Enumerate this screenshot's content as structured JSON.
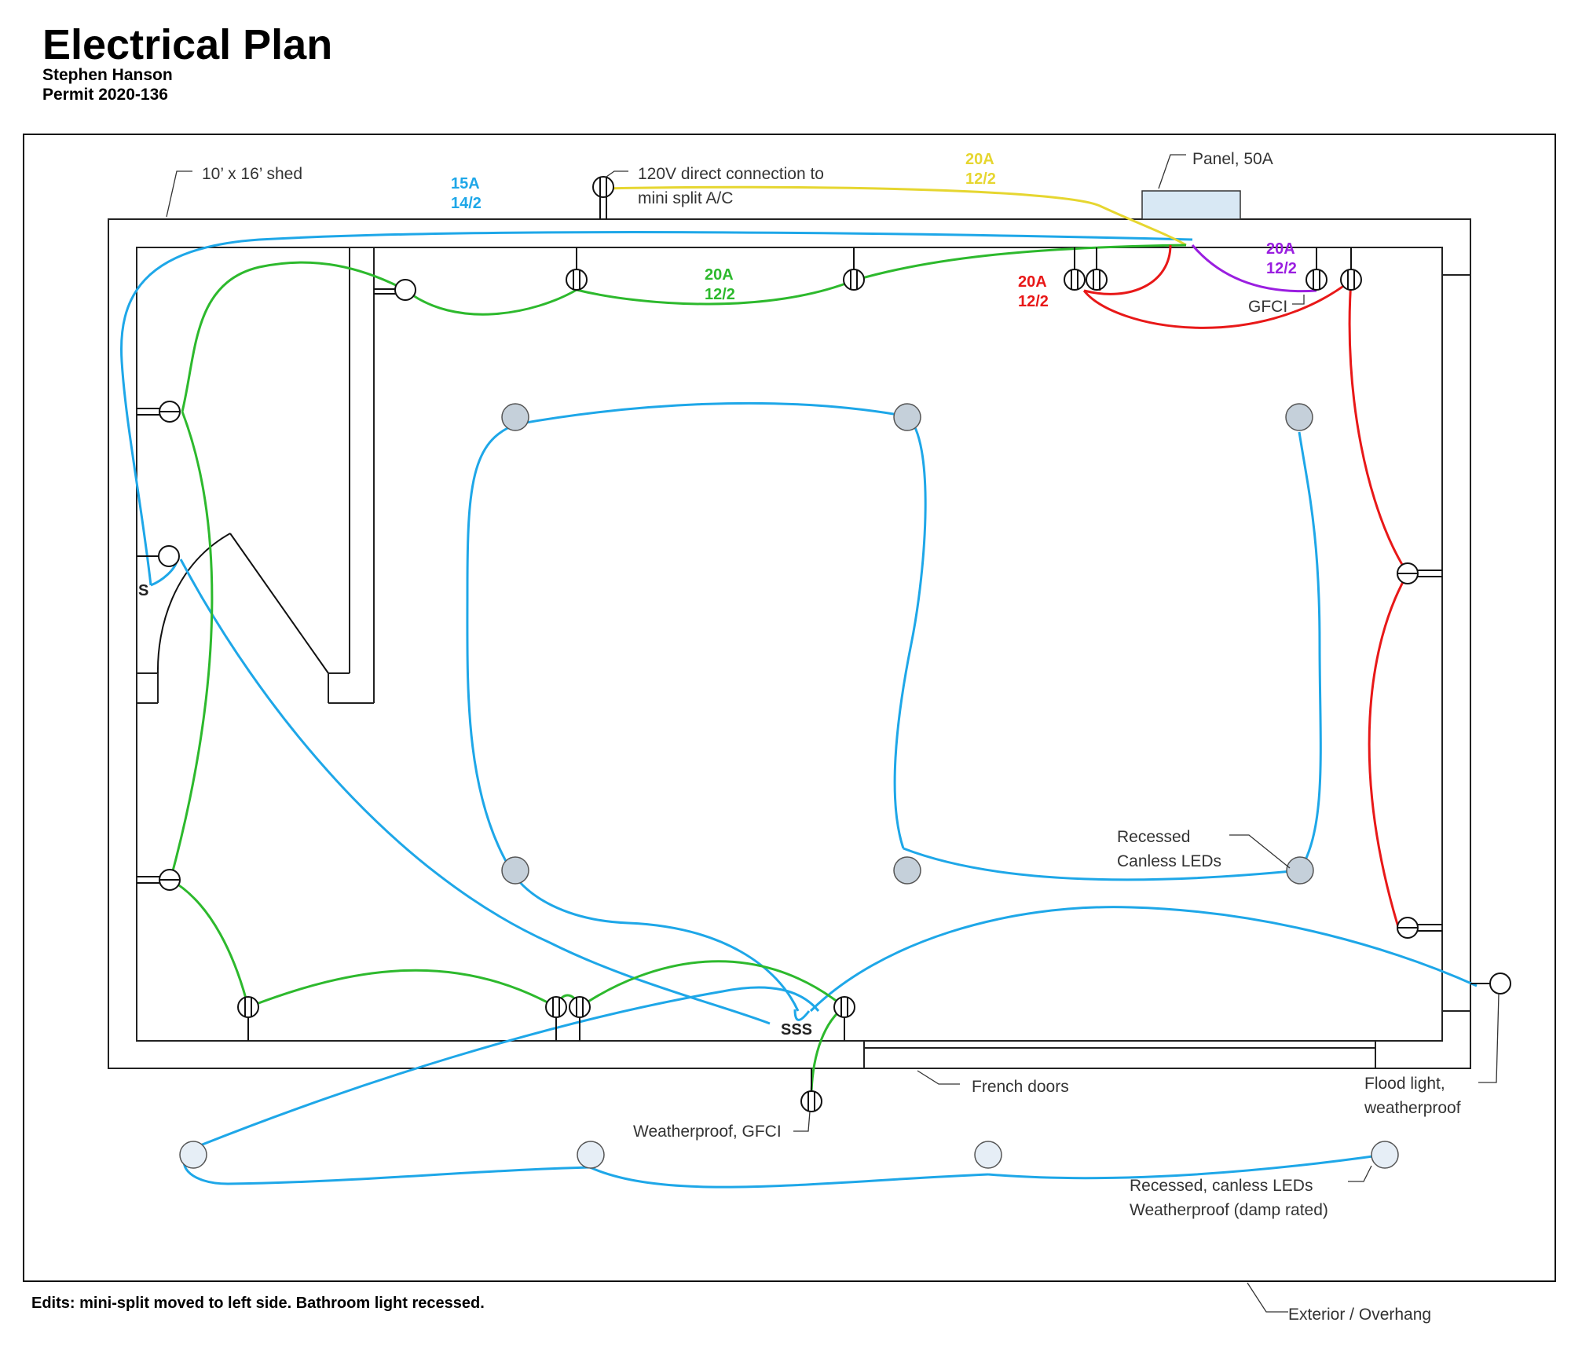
{
  "header": {
    "title": "Electrical Plan",
    "owner": "Stephen Hanson",
    "permit": "Permit 2020-136"
  },
  "colors": {
    "blue_circuit": "#1ea7e8",
    "green_circuit": "#2db92d",
    "yellow_circuit": "#e6d630",
    "red_circuit": "#e81818",
    "purple_circuit": "#9a1ee0",
    "fixture_interior": "#c5d0da",
    "fixture_exterior": "#e6eef6",
    "panel_fill": "#d8e8f4"
  },
  "labels": {
    "shed": "10’ x 16’ shed",
    "mini_split_line1": "120V direct connection to",
    "mini_split_line2": "mini split A/C",
    "panel": "Panel, 50A",
    "gfci": "GFCI",
    "recessed_line1": "Recessed",
    "recessed_line2": "Canless LEDs",
    "french_doors": "French doors",
    "weatherproof_gfci": "Weatherproof, GFCI",
    "flood_line1": "Flood light,",
    "flood_line2": "weatherproof",
    "ext_recessed_line1": "Recessed, canless LEDs",
    "ext_recessed_line2": "Weatherproof (damp rated)",
    "overhang": "Exterior / Overhang",
    "switch_single": "S",
    "switch_triple": "SSS"
  },
  "circuits": {
    "blue": {
      "amps": "15A",
      "wire": "14/2"
    },
    "yellow": {
      "amps": "20A",
      "wire": "12/2"
    },
    "green": {
      "amps": "20A",
      "wire": "12/2"
    },
    "red": {
      "amps": "20A",
      "wire": "12/2"
    },
    "purple": {
      "amps": "20A",
      "wire": "12/2"
    }
  },
  "footer": {
    "edits": "Edits: mini-split moved to left side. Bathroom light recessed."
  }
}
